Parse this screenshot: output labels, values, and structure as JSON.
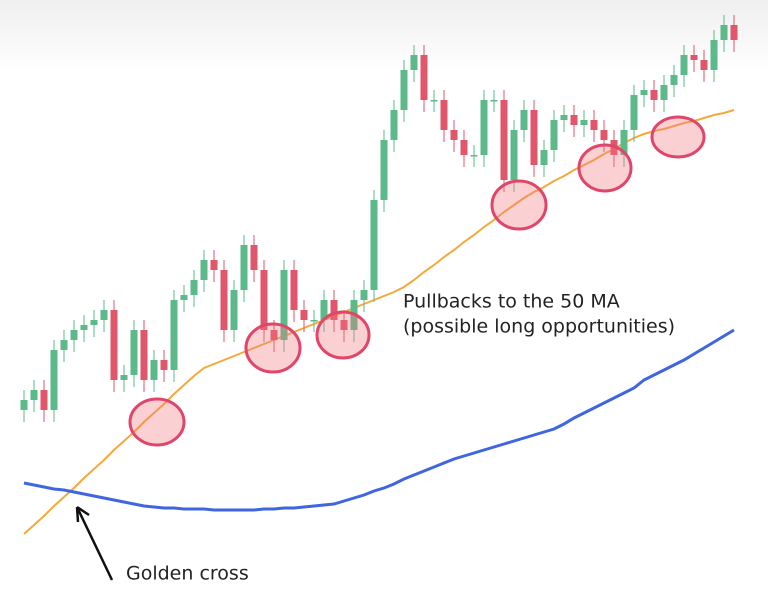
{
  "chart_data": {
    "type": "candlestick",
    "up_color": "#5bb98a",
    "down_color": "#e0566b",
    "open": [
      190,
      200,
      210,
      190,
      250,
      260,
      270,
      275,
      280,
      290,
      220,
      225,
      270,
      220,
      240,
      230,
      300,
      305,
      320,
      340,
      330,
      270,
      310,
      355,
      330,
      270,
      260,
      330,
      290,
      280,
      280,
      300,
      280,
      270,
      300,
      310,
      400,
      460,
      490,
      530,
      545,
      500,
      500,
      470,
      460,
      445,
      445,
      500,
      500,
      420,
      470,
      490,
      435,
      450,
      480,
      485,
      475,
      480,
      470,
      460,
      445,
      470,
      505,
      510,
      500,
      515,
      525,
      545,
      540,
      530,
      560,
      575
    ],
    "high": [
      210,
      220,
      220,
      260,
      270,
      280,
      285,
      290,
      300,
      300,
      235,
      280,
      280,
      250,
      250,
      310,
      315,
      330,
      350,
      350,
      340,
      320,
      365,
      365,
      340,
      280,
      340,
      340,
      300,
      290,
      310,
      310,
      290,
      310,
      320,
      410,
      470,
      500,
      540,
      555,
      555,
      510,
      510,
      480,
      470,
      455,
      510,
      510,
      510,
      480,
      500,
      500,
      460,
      490,
      495,
      495,
      490,
      490,
      480,
      470,
      480,
      515,
      520,
      520,
      525,
      535,
      555,
      555,
      550,
      570,
      585,
      585
    ],
    "low": [
      178,
      188,
      178,
      178,
      238,
      248,
      258,
      263,
      268,
      208,
      208,
      213,
      208,
      208,
      218,
      218,
      288,
      293,
      308,
      318,
      258,
      258,
      298,
      318,
      258,
      248,
      248,
      278,
      268,
      268,
      268,
      268,
      258,
      258,
      288,
      298,
      388,
      448,
      478,
      518,
      488,
      488,
      458,
      448,
      433,
      433,
      433,
      488,
      408,
      408,
      458,
      423,
      423,
      438,
      468,
      463,
      463,
      458,
      448,
      433,
      433,
      458,
      493,
      488,
      488,
      503,
      513,
      528,
      518,
      518,
      548,
      548
    ],
    "close": [
      200,
      210,
      190,
      250,
      260,
      270,
      275,
      280,
      290,
      220,
      225,
      270,
      220,
      240,
      230,
      300,
      305,
      320,
      340,
      330,
      270,
      310,
      355,
      330,
      270,
      260,
      330,
      290,
      280,
      280,
      300,
      280,
      270,
      300,
      310,
      400,
      460,
      490,
      530,
      545,
      500,
      500,
      470,
      460,
      445,
      445,
      500,
      500,
      420,
      470,
      490,
      435,
      450,
      480,
      485,
      475,
      480,
      470,
      460,
      445,
      470,
      505,
      510,
      500,
      515,
      525,
      545,
      540,
      530,
      560,
      575,
      560
    ],
    "lines": [
      {
        "color": "#f5a93b",
        "values": [
          66,
          75,
          84,
          94,
          103,
          112,
          122,
          131,
          140,
          150,
          159,
          168,
          178,
          187,
          196,
          206,
          215,
          224,
          232,
          236,
          240,
          244,
          248,
          252,
          256,
          260,
          264,
          268,
          272,
          276,
          280,
          284,
          288,
          292,
          296,
          300,
          304,
          308,
          313,
          320,
          328,
          335,
          343,
          350,
          358,
          365,
          373,
          380,
          388,
          395,
          402,
          408,
          413,
          419,
          424,
          430,
          435,
          440,
          446,
          451,
          457,
          462,
          466,
          469,
          471,
          474,
          477,
          479,
          482,
          485,
          487,
          490
        ]
      },
      {
        "color": "#3f66e0",
        "values": [
          117,
          115,
          113,
          111,
          110,
          108,
          106,
          104,
          102,
          100,
          98,
          96,
          94,
          93,
          92,
          92,
          91,
          91,
          91,
          90,
          90,
          90,
          90,
          90,
          91,
          91,
          92,
          92,
          93,
          94,
          95,
          96,
          99,
          102,
          105,
          109,
          112,
          116,
          121,
          125,
          129,
          133,
          137,
          141,
          144,
          147,
          150,
          153,
          156,
          159,
          162,
          165,
          168,
          171,
          176,
          182,
          187,
          192,
          197,
          202,
          207,
          212,
          220,
          225,
          230,
          235,
          240,
          246,
          252,
          258,
          264,
          270
        ]
      }
    ],
    "annotations": [
      "Pullbacks to the 50 MA",
      "(possible long opportunities)",
      "Golden cross"
    ]
  }
}
